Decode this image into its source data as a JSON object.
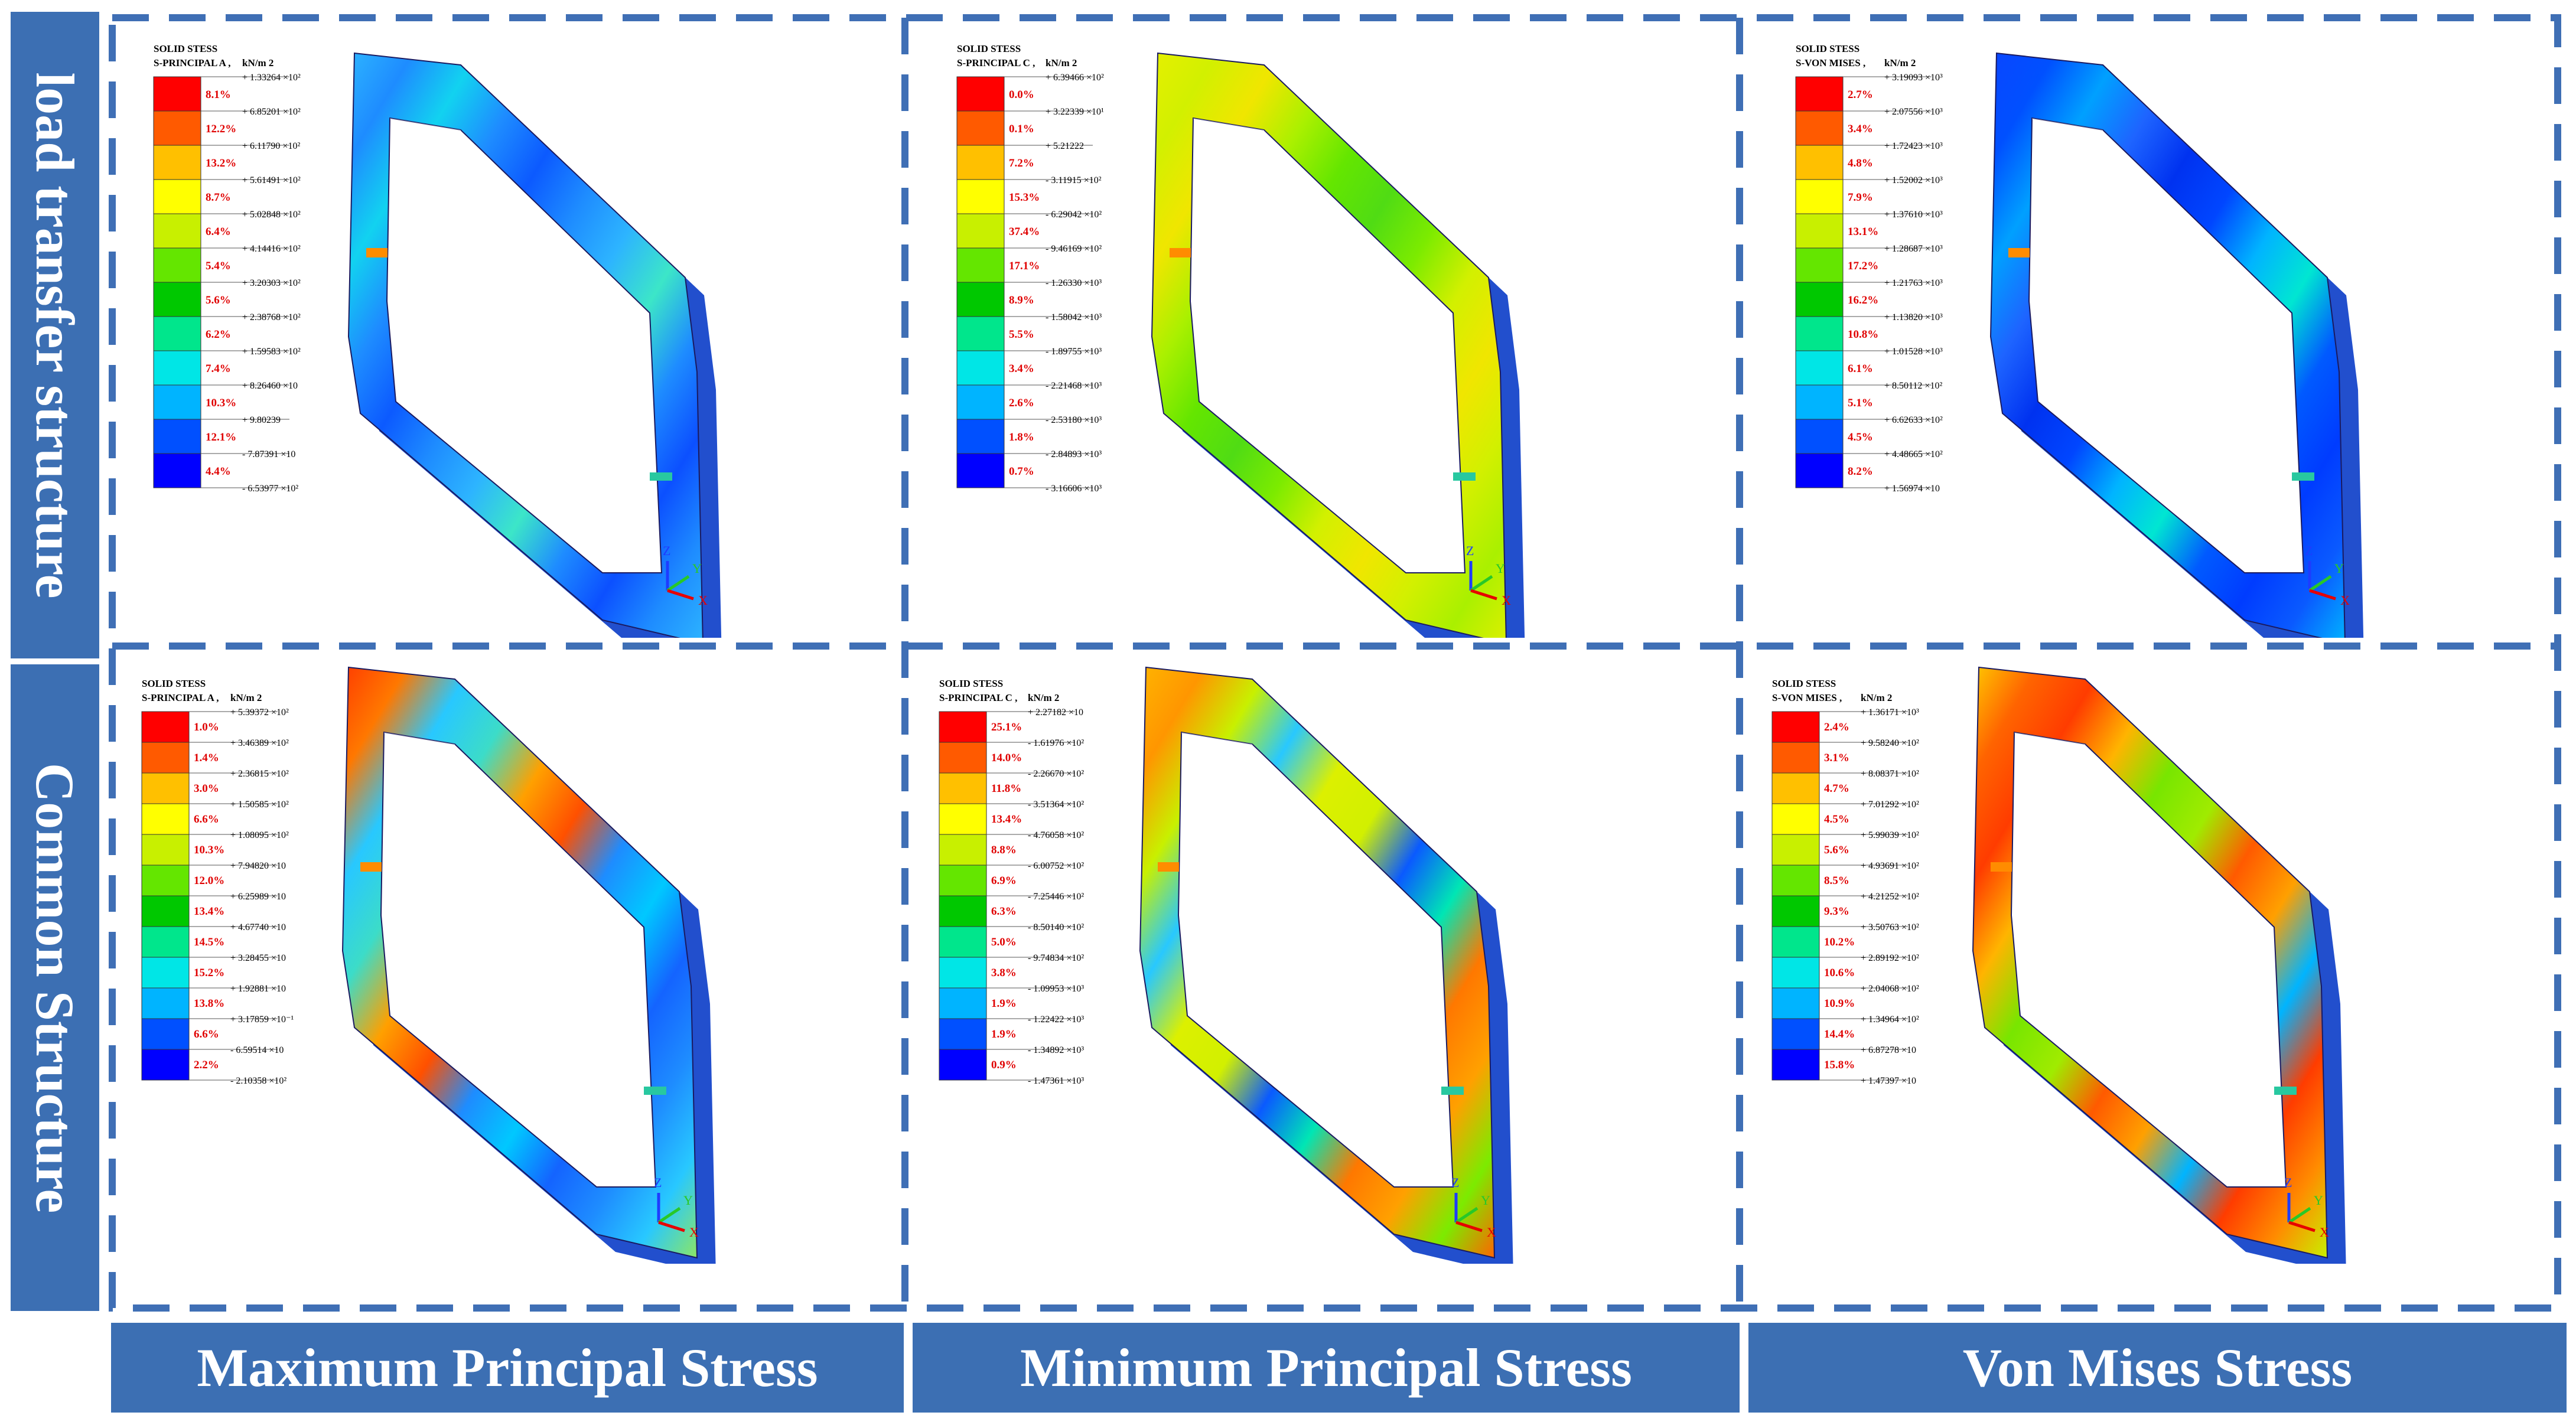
{
  "row_labels": [
    "load transfer structure",
    "Common Structure"
  ],
  "column_labels": [
    "Maximum Principal Stress",
    "Minimum Principal Stress",
    "Von Mises Stress"
  ],
  "legend_colors": [
    "#ff0000",
    "#ff5a00",
    "#ffc000",
    "#ffff00",
    "#c8f000",
    "#64e600",
    "#00c800",
    "#00e68c",
    "#00e6e6",
    "#00b4ff",
    "#0050ff",
    "#0000ff"
  ],
  "axis_labels": {
    "z": "Z",
    "y": "Y",
    "x": "X"
  },
  "panels": [
    {
      "header": "SOLID STESS",
      "result": "S-PRINCIPAL A ,",
      "unit": "kN/m 2",
      "values": [
        "+ 1.33264 ×10²",
        "+ 6.85201 ×10²",
        "+ 6.11790 ×10²",
        "+ 5.61491 ×10²",
        "+ 5.02848 ×10²",
        "+ 4.14416 ×10²",
        "+ 3.20303 ×10²",
        "+ 2.38768 ×10²",
        "+ 1.59583 ×10²",
        "+ 8.26460 ×10",
        "+ 9.80239",
        "- 7.87391 ×10",
        "- 6.53977 ×10²"
      ],
      "percents": [
        "8.1%",
        "12.2%",
        "13.2%",
        "8.7%",
        "6.4%",
        "5.4%",
        "5.6%",
        "6.2%",
        "7.4%",
        "10.3%",
        "12.1%",
        "4.4%"
      ]
    },
    {
      "header": "SOLID STESS",
      "result": "S-PRINCIPAL C ,",
      "unit": "kN/m 2",
      "values": [
        "+ 6.39466 ×10²",
        "+ 3.22339 ×10¹",
        "+ 5.21222",
        "- 3.11915 ×10²",
        "- 6.29042 ×10²",
        "- 9.46169 ×10²",
        "- 1.26330 ×10³",
        "- 1.58042 ×10³",
        "- 1.89755 ×10³",
        "- 2.21468 ×10³",
        "- 2.53180 ×10³",
        "- 2.84893 ×10³",
        "- 3.16606 ×10³"
      ],
      "percents": [
        "0.0%",
        "0.1%",
        "7.2%",
        "15.3%",
        "37.4%",
        "17.1%",
        "8.9%",
        "5.5%",
        "3.4%",
        "2.6%",
        "1.8%",
        "0.7%"
      ]
    },
    {
      "header": "SOLID STESS",
      "result": "S-VON MISES ,",
      "unit": "kN/m 2",
      "values": [
        "+ 3.19093 ×10³",
        "+ 2.07556 ×10³",
        "+ 1.72423 ×10³",
        "+ 1.52002 ×10³",
        "+ 1.37610 ×10³",
        "+ 1.28687 ×10³",
        "+ 1.21763 ×10³",
        "+ 1.13820 ×10³",
        "+ 1.01528 ×10³",
        "+ 8.50112 ×10²",
        "+ 6.62633 ×10²",
        "+ 4.48665 ×10²",
        "+ 1.56974 ×10"
      ],
      "percents": [
        "2.7%",
        "3.4%",
        "4.8%",
        "7.9%",
        "13.1%",
        "17.2%",
        "16.2%",
        "10.8%",
        "6.1%",
        "5.1%",
        "4.5%",
        "8.2%"
      ]
    },
    {
      "header": "SOLID STESS",
      "result": "S-PRINCIPAL A ,",
      "unit": "kN/m 2",
      "values": [
        "+ 5.39372 ×10²",
        "+ 3.46389 ×10²",
        "+ 2.36815 ×10²",
        "+ 1.50585 ×10²",
        "+ 1.08095 ×10²",
        "+ 7.94820 ×10",
        "+ 6.25989 ×10",
        "+ 4.67740 ×10",
        "+ 3.28455 ×10",
        "+ 1.92881 ×10",
        "+ 3.17859 ×10⁻¹",
        "- 6.59514 ×10",
        "- 2.10358 ×10²"
      ],
      "percents": [
        "1.0%",
        "1.4%",
        "3.0%",
        "6.6%",
        "10.3%",
        "12.0%",
        "13.4%",
        "14.5%",
        "15.2%",
        "13.8%",
        "6.6%",
        "2.2%"
      ]
    },
    {
      "header": "SOLID STESS",
      "result": "S-PRINCIPAL C ,",
      "unit": "kN/m 2",
      "values": [
        "+ 2.27182 ×10",
        "- 1.61976 ×10²",
        "- 2.26670 ×10²",
        "- 3.51364 ×10²",
        "- 4.76058 ×10²",
        "- 6.00752 ×10²",
        "- 7.25446 ×10²",
        "- 8.50140 ×10²",
        "- 9.74834 ×10²",
        "- 1.09953 ×10³",
        "- 1.22422 ×10³",
        "- 1.34892 ×10³",
        "- 1.47361 ×10³"
      ],
      "percents": [
        "25.1%",
        "14.0%",
        "11.8%",
        "13.4%",
        "8.8%",
        "6.9%",
        "6.3%",
        "5.0%",
        "3.8%",
        "1.9%",
        "1.9%",
        "0.9%"
      ]
    },
    {
      "header": "SOLID STESS",
      "result": "S-VON MISES ,",
      "unit": "kN/m 2",
      "values": [
        "+ 1.36171 ×10³",
        "+ 9.58240 ×10²",
        "+ 8.08371 ×10²",
        "+ 7.01292 ×10²",
        "+ 5.99039 ×10²",
        "+ 4.93691 ×10²",
        "+ 4.21252 ×10²",
        "+ 3.50763 ×10²",
        "+ 2.89192 ×10²",
        "+ 2.04068 ×10²",
        "+ 1.34964 ×10²",
        "+ 6.87278 ×10",
        "+ 1.47397 ×10"
      ],
      "percents": [
        "2.4%",
        "3.1%",
        "4.7%",
        "4.5%",
        "5.6%",
        "8.5%",
        "9.3%",
        "10.2%",
        "10.6%",
        "10.9%",
        "14.4%",
        "15.8%"
      ]
    }
  ]
}
